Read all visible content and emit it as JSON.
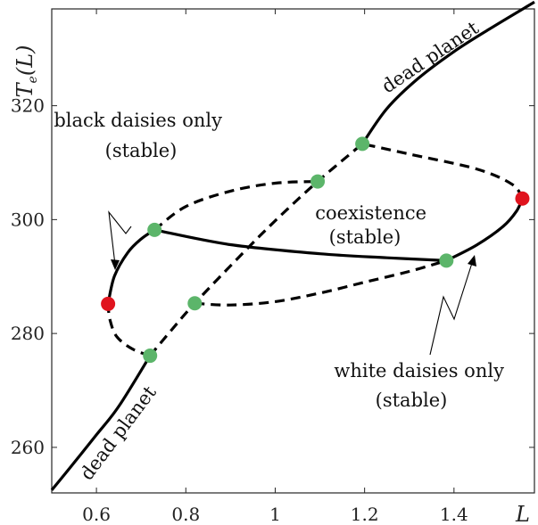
{
  "chart_data": {
    "type": "line",
    "title": "",
    "xlabel": "L",
    "ylabel": "T_e(L)",
    "xlim": [
      0.5,
      1.58
    ],
    "ylim": [
      252,
      337
    ],
    "x_ticks": [
      0.6,
      0.8,
      1,
      1.2,
      1.4
    ],
    "x_tick_labels": [
      "0.6",
      "0.8",
      "1",
      "1.2",
      "1.4"
    ],
    "y_ticks": [
      260,
      280,
      300,
      320
    ],
    "y_tick_labels": [
      "260",
      "280",
      "300",
      "320"
    ],
    "grid": false,
    "legend": "none",
    "series": [
      {
        "style": "solid",
        "points": [
          [
            0.5,
            252.5
          ],
          [
            0.55,
            257.3
          ],
          [
            0.6,
            262.2
          ],
          [
            0.65,
            267.2
          ],
          [
            0.72,
            276.1
          ]
        ]
      },
      {
        "style": "dashed",
        "points": [
          [
            0.72,
            276.1
          ],
          [
            0.68,
            277.3
          ],
          [
            0.645,
            279.5
          ],
          [
            0.63,
            282.5
          ],
          [
            0.626,
            285.2
          ]
        ]
      },
      {
        "style": "solid",
        "points": [
          [
            0.626,
            285.2
          ],
          [
            0.64,
            290
          ],
          [
            0.67,
            294.2
          ],
          [
            0.7,
            296.6
          ],
          [
            0.73,
            298.2
          ]
        ]
      },
      {
        "style": "dashed",
        "points": [
          [
            0.73,
            298.2
          ],
          [
            0.8,
            302.3
          ],
          [
            0.9,
            305
          ],
          [
            1.0,
            306.4
          ],
          [
            1.095,
            306.7
          ]
        ]
      },
      {
        "style": "dashed",
        "points": [
          [
            0.72,
            276.1
          ],
          [
            0.77,
            280.8
          ],
          [
            0.82,
            285.3
          ],
          [
            0.92,
            293.5
          ],
          [
            1.0,
            299.8
          ],
          [
            1.095,
            306.7
          ],
          [
            1.195,
            313.3
          ]
        ]
      },
      {
        "style": "solid",
        "points": [
          [
            0.73,
            298.2
          ],
          [
            0.9,
            295.6
          ],
          [
            1.1,
            294
          ],
          [
            1.25,
            293.3
          ],
          [
            1.383,
            292.8
          ]
        ]
      },
      {
        "style": "dashed",
        "points": [
          [
            0.82,
            285.3
          ],
          [
            0.9,
            285
          ],
          [
            1.0,
            285.6
          ],
          [
            1.1,
            287.1
          ],
          [
            1.2,
            289
          ],
          [
            1.3,
            290.9
          ],
          [
            1.383,
            292.8
          ]
        ]
      },
      {
        "style": "solid",
        "points": [
          [
            1.383,
            292.8
          ],
          [
            1.45,
            295.5
          ],
          [
            1.51,
            298.8
          ],
          [
            1.54,
            301.5
          ],
          [
            1.553,
            303.7
          ]
        ]
      },
      {
        "style": "dashed",
        "points": [
          [
            1.553,
            303.7
          ],
          [
            1.53,
            306.2
          ],
          [
            1.45,
            308.9
          ],
          [
            1.3,
            311.5
          ],
          [
            1.195,
            313.3
          ]
        ]
      },
      {
        "style": "solid",
        "points": [
          [
            1.195,
            313.3
          ],
          [
            1.25,
            319.5
          ],
          [
            1.32,
            324.8
          ],
          [
            1.4,
            329.5
          ],
          [
            1.48,
            333.5
          ],
          [
            1.58,
            338.2
          ]
        ]
      }
    ],
    "green_points": [
      [
        0.72,
        276.1
      ],
      [
        0.73,
        298.2
      ],
      [
        0.82,
        285.3
      ],
      [
        1.095,
        306.7
      ],
      [
        1.195,
        313.3
      ],
      [
        1.383,
        292.8
      ]
    ],
    "red_points": [
      [
        0.626,
        285.2
      ],
      [
        1.553,
        303.7
      ]
    ],
    "annotations": [
      {
        "lines": [
          "black daisies only",
          "(stable)"
        ]
      },
      {
        "lines": [
          "coexistence",
          "(stable)"
        ]
      },
      {
        "lines": [
          "white daisies only",
          "(stable)"
        ]
      },
      {
        "lines": [
          "dead planet"
        ]
      },
      {
        "lines": [
          "dead planet"
        ]
      }
    ],
    "colors": {
      "curve": "#000000",
      "green": "#5cb56a",
      "red": "#e0141e"
    }
  }
}
